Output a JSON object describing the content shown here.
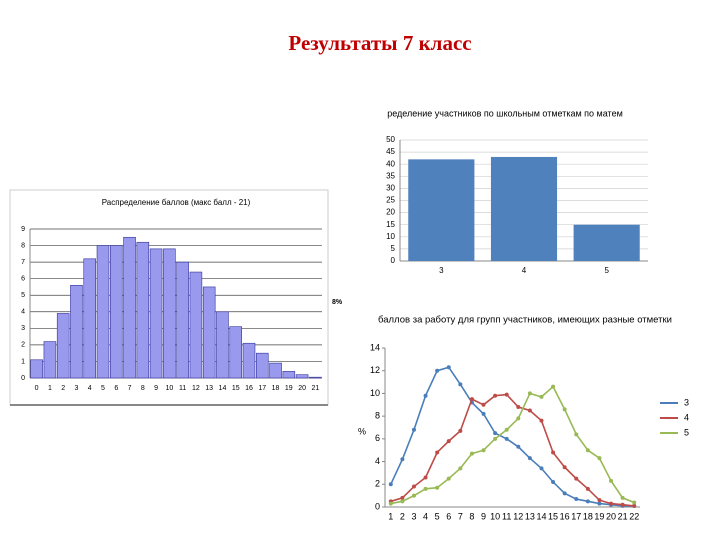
{
  "title": "Результаты 7 класс",
  "chart_data": [
    {
      "type": "bar",
      "title": "Распределение баллов (макс балл - 21)",
      "annotation": "8%",
      "categories": [
        "0",
        "1",
        "2",
        "3",
        "4",
        "5",
        "6",
        "7",
        "8",
        "9",
        "10",
        "11",
        "12",
        "13",
        "14",
        "15",
        "16",
        "17",
        "18",
        "19",
        "20",
        "21"
      ],
      "values": [
        1.1,
        2.2,
        3.9,
        5.6,
        7.2,
        8.0,
        8.0,
        8.5,
        8.2,
        7.8,
        7.8,
        7.0,
        6.4,
        5.5,
        4.0,
        3.1,
        2.1,
        1.5,
        0.9,
        0.4,
        0.2,
        0.05
      ],
      "color": "#9999ee",
      "ylim": [
        0,
        9
      ],
      "yticks": [
        0,
        1,
        2,
        3,
        4,
        5,
        6,
        7,
        8,
        9
      ],
      "grid": true
    },
    {
      "type": "bar",
      "title": "ределение участников по школьным отметкам по матем",
      "categories": [
        "3",
        "4",
        "5"
      ],
      "values": [
        42,
        43,
        15
      ],
      "color": "#4f81bd",
      "ylim": [
        0,
        50
      ],
      "yticks": [
        0,
        5,
        10,
        15,
        20,
        25,
        30,
        35,
        40,
        45,
        50
      ],
      "grid": true
    },
    {
      "type": "line",
      "title": "баллов за работу для групп участников, имеющих разные отметки",
      "y_label": "%",
      "categories": [
        "1",
        "2",
        "3",
        "4",
        "5",
        "6",
        "7",
        "8",
        "9",
        "10",
        "11",
        "12",
        "13",
        "14",
        "15",
        "16",
        "17",
        "18",
        "19",
        "20",
        "21",
        "22"
      ],
      "series": [
        {
          "name": "3",
          "color": "#4a7ebb",
          "values": [
            2.0,
            4.2,
            6.8,
            9.8,
            12.0,
            12.3,
            10.8,
            9.2,
            8.2,
            6.5,
            6.0,
            5.3,
            4.3,
            3.4,
            2.2,
            1.2,
            0.7,
            0.5,
            0.3,
            0.2,
            0.1,
            0.1
          ]
        },
        {
          "name": "4",
          "color": "#be4b48",
          "values": [
            0.5,
            0.8,
            1.8,
            2.6,
            4.8,
            5.8,
            6.7,
            9.5,
            9.0,
            9.8,
            9.9,
            8.8,
            8.5,
            7.6,
            4.8,
            3.5,
            2.5,
            1.6,
            0.6,
            0.3,
            0.2,
            0.1
          ]
        },
        {
          "name": "5",
          "color": "#98b954",
          "values": [
            0.3,
            0.5,
            1.0,
            1.6,
            1.7,
            2.5,
            3.4,
            4.7,
            5.0,
            6.0,
            6.8,
            7.8,
            10.0,
            9.7,
            10.6,
            8.6,
            6.4,
            5.0,
            4.3,
            2.3,
            0.8,
            0.4
          ]
        }
      ],
      "ylim": [
        0,
        14
      ],
      "yticks": [
        0,
        2,
        4,
        6,
        8,
        10,
        12,
        14
      ],
      "grid": false
    }
  ]
}
